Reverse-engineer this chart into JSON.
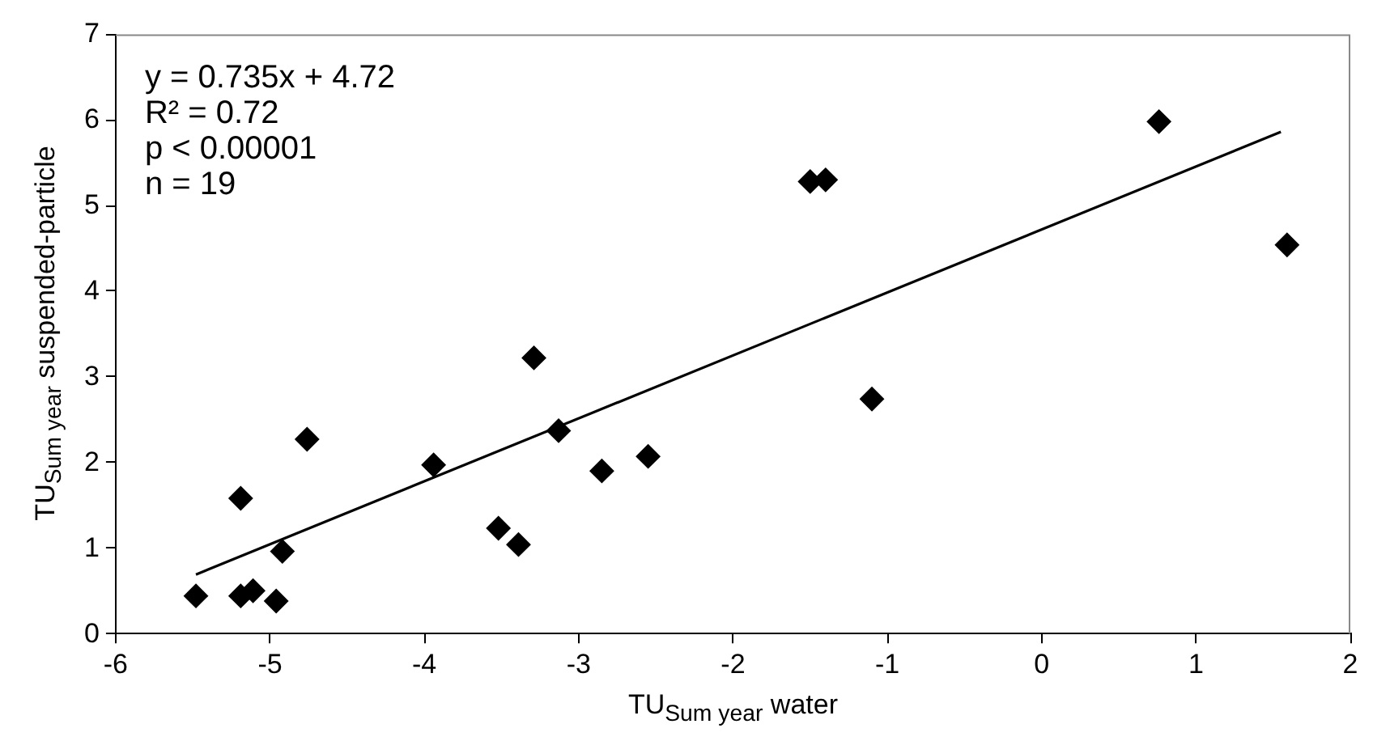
{
  "chart_data": {
    "type": "scatter",
    "xlabel": "TU$_{Sum year}$ water",
    "ylabel": "TU$_{Sum year}$ suspended-particle",
    "annotations": [
      "y = 0.735x + 4.72",
      "R² = 0.72",
      "p < 0.00001",
      "n = 19"
    ],
    "xlim": [
      -6,
      2
    ],
    "xticks": [
      -6,
      -5,
      -4,
      -3,
      -2,
      -1,
      0,
      1,
      2
    ],
    "ylim": [
      0,
      7
    ],
    "yticks": [
      0,
      1,
      2,
      3,
      4,
      5,
      6,
      7
    ],
    "grid": false,
    "legend": false,
    "marker": "diamond",
    "series": [
      {
        "type": "scatter",
        "color": "#000000",
        "x": [
          -5.48,
          -5.19,
          -5.19,
          -5.11,
          -4.96,
          -4.92,
          -4.76,
          -3.94,
          -3.52,
          -3.39,
          -3.29,
          -3.13,
          -2.85,
          -2.55,
          -1.5,
          -1.4,
          -1.1,
          0.76,
          1.59
        ],
        "values": [
          0.44,
          1.58,
          0.44,
          0.5,
          0.38,
          0.96,
          2.27,
          1.97,
          1.23,
          1.04,
          3.22,
          2.37,
          1.9,
          2.07,
          5.28,
          5.3,
          2.74,
          5.98,
          4.54
        ]
      },
      {
        "type": "line",
        "color": "#000000",
        "marker": "none",
        "line_style": "solid",
        "x": [
          -5.48,
          1.55
        ],
        "values": [
          0.69,
          5.86
        ]
      }
    ]
  }
}
